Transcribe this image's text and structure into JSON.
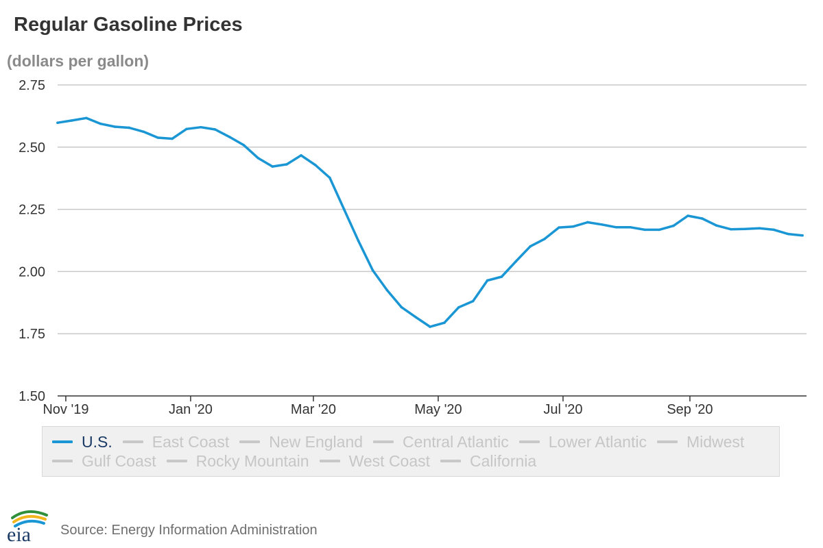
{
  "chart_data": {
    "type": "line",
    "title": "Regular Gasoline Prices",
    "ylabel": "(dollars per gallon)",
    "ylim": [
      1.5,
      2.75
    ],
    "yticks": [
      "1.50",
      "1.75",
      "2.00",
      "2.25",
      "2.50",
      "2.75"
    ],
    "xtick_labels": [
      "Nov '19",
      "Jan '20",
      "Mar '20",
      "May '20",
      "Jul '20",
      "Sep '20"
    ],
    "xtick_dates": [
      "2019-11-01",
      "2020-01-01",
      "2020-03-01",
      "2020-05-01",
      "2020-07-01",
      "2020-09-01"
    ],
    "x_range": [
      "2019-10-28",
      "2020-10-28"
    ],
    "grid": true,
    "legend_position": "bottom",
    "x": [
      "2019-10-28",
      "2019-11-04",
      "2019-11-11",
      "2019-11-18",
      "2019-11-25",
      "2019-12-02",
      "2019-12-09",
      "2019-12-16",
      "2019-12-23",
      "2019-12-30",
      "2020-01-06",
      "2020-01-13",
      "2020-01-20",
      "2020-01-27",
      "2020-02-03",
      "2020-02-10",
      "2020-02-17",
      "2020-02-24",
      "2020-03-02",
      "2020-03-09",
      "2020-03-16",
      "2020-03-23",
      "2020-03-30",
      "2020-04-06",
      "2020-04-13",
      "2020-04-20",
      "2020-04-27",
      "2020-05-04",
      "2020-05-11",
      "2020-05-18",
      "2020-05-25",
      "2020-06-01",
      "2020-06-08",
      "2020-06-15",
      "2020-06-22",
      "2020-06-29",
      "2020-07-06",
      "2020-07-13",
      "2020-07-20",
      "2020-07-27",
      "2020-08-03",
      "2020-08-10",
      "2020-08-17",
      "2020-08-24",
      "2020-08-31",
      "2020-09-07",
      "2020-09-14",
      "2020-09-21",
      "2020-09-28",
      "2020-10-05",
      "2020-10-12",
      "2020-10-19",
      "2020-10-26"
    ],
    "series": [
      {
        "name": "U.S.",
        "color": "#1a96d4",
        "values": [
          2.598,
          2.607,
          2.617,
          2.594,
          2.582,
          2.578,
          2.562,
          2.538,
          2.534,
          2.573,
          2.58,
          2.571,
          2.541,
          2.508,
          2.456,
          2.422,
          2.431,
          2.467,
          2.428,
          2.377,
          2.25,
          2.123,
          2.005,
          1.925,
          1.857,
          1.817,
          1.778,
          1.794,
          1.856,
          1.881,
          1.964,
          1.979,
          2.041,
          2.101,
          2.131,
          2.177,
          2.181,
          2.198,
          2.189,
          2.178,
          2.178,
          2.168,
          2.168,
          2.184,
          2.224,
          2.213,
          2.185,
          2.17,
          2.171,
          2.174,
          2.168,
          2.151,
          2.145
        ]
      }
    ]
  },
  "legend": [
    {
      "label": "U.S.",
      "active": true
    },
    {
      "label": "East Coast",
      "active": false
    },
    {
      "label": "New England",
      "active": false
    },
    {
      "label": "Central Atlantic",
      "active": false
    },
    {
      "label": "Lower Atlantic",
      "active": false
    },
    {
      "label": "Midwest",
      "active": false
    },
    {
      "label": "Gulf Coast",
      "active": false
    },
    {
      "label": "Rocky Mountain",
      "active": false
    },
    {
      "label": "West Coast",
      "active": false
    },
    {
      "label": "California",
      "active": false
    }
  ],
  "logo_text": "eia",
  "logo_icon": "eia-logo-icon",
  "source": "Source: Energy Information Administration",
  "colors": {
    "line": "#1a96d4",
    "grid": "#c8c8c8",
    "axis": "#333333",
    "legend_inactive": "#c6c6c6",
    "legend_active_text": "#1a3a66"
  }
}
